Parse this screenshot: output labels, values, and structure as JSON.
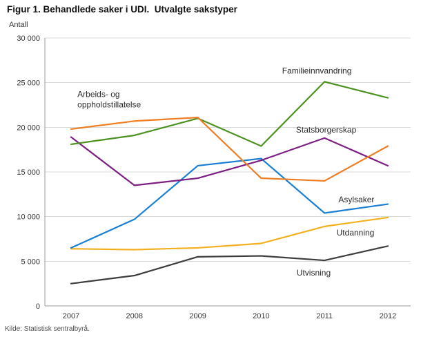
{
  "title": "Figur 1. Behandlede saker i UDI.  Utvalgte sakstyper",
  "source": "Kilde: Statistisk sentralbyrå.",
  "chart_data": {
    "type": "line",
    "title": "Figur 1. Behandlede saker i UDI. Utvalgte sakstyper",
    "ylabel": "Antall",
    "xlabel": "",
    "x": [
      2007,
      2008,
      2009,
      2010,
      2011,
      2012
    ],
    "ylim": [
      0,
      30000
    ],
    "ytick_step": 5000,
    "ytick_labels": [
      "0",
      "5 000",
      "10 000",
      "15 000",
      "20 000",
      "25 000",
      "30 000"
    ],
    "grid": true,
    "legend_position": "inline-annotations",
    "series": [
      {
        "name": "Arbeids- og oppholdstillatelse",
        "color": "#ee7d23",
        "values": [
          19800,
          20700,
          21100,
          14300,
          14000,
          17900
        ]
      },
      {
        "name": "Familieinnvandring",
        "color": "#4d9221",
        "values": [
          18100,
          19100,
          21000,
          17900,
          25100,
          23300
        ]
      },
      {
        "name": "Statsborgerskap",
        "color": "#7b1f82",
        "values": [
          18900,
          13500,
          14300,
          16300,
          18800,
          15700
        ]
      },
      {
        "name": "Asylsaker",
        "color": "#1a7fd4",
        "values": [
          6500,
          9700,
          15700,
          16500,
          10400,
          11400
        ]
      },
      {
        "name": "Utdanning",
        "color": "#f2b01e",
        "values": [
          6400,
          6300,
          6500,
          7000,
          8900,
          9900
        ]
      },
      {
        "name": "Utvisning",
        "color": "#3d3d3d",
        "values": [
          2500,
          3400,
          5500,
          5600,
          5100,
          6700
        ]
      }
    ],
    "annotations": [
      {
        "text": "Arbeids- og\noppholdstillatelse",
        "x": 2007.1,
        "y": 23400
      },
      {
        "text": "Familieinnvandring",
        "x": 2010.33,
        "y": 26000
      },
      {
        "text": "Statsborgerskap",
        "x": 2010.55,
        "y": 19400
      },
      {
        "text": "Asylsaker",
        "x": 2011.22,
        "y": 11600
      },
      {
        "text": "Utdanning",
        "x": 2011.19,
        "y": 7900
      },
      {
        "text": "Utvisning",
        "x": 2010.56,
        "y": 3400
      }
    ]
  }
}
